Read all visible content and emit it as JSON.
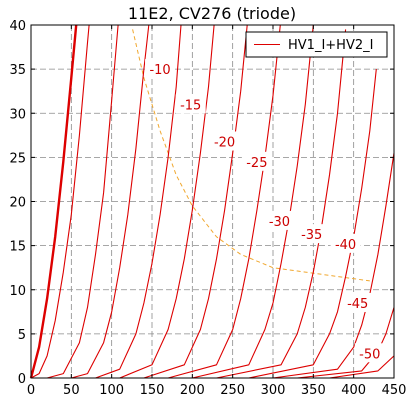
{
  "chart_data": {
    "type": "line",
    "title": "11E2, CV276 (triode)",
    "xlabel": "",
    "ylabel": "",
    "xlim": [
      0,
      450
    ],
    "ylim": [
      0,
      40
    ],
    "x_ticks": [
      0,
      50,
      100,
      150,
      200,
      250,
      300,
      350,
      400,
      450
    ],
    "y_ticks": [
      0,
      5,
      10,
      15,
      20,
      25,
      30,
      35,
      40
    ],
    "grid": true,
    "legend": {
      "placement": "top-right",
      "entries": [
        "HV1_I+HV2_I"
      ]
    },
    "series_color": "#dd0000",
    "guide_color": "#f0a830",
    "series": [
      {
        "name": "HV1_I+HV2_I",
        "emphasis": "bold",
        "x": [
          0,
          10,
          20,
          30,
          40,
          50,
          56
        ],
        "y": [
          0,
          3.5,
          9.0,
          16.0,
          24.5,
          34.0,
          40.0
        ]
      },
      {
        "x": [
          0,
          10,
          20,
          30,
          40,
          50,
          60,
          70,
          72
        ],
        "y": [
          0,
          0.5,
          2.5,
          6.5,
          12.0,
          18.5,
          27.5,
          38.0,
          40.0
        ]
      },
      {
        "x": [
          20,
          40,
          60,
          70,
          80,
          90,
          100,
          108
        ],
        "y": [
          0,
          0.5,
          4.0,
          8.0,
          14.0,
          21.0,
          31.5,
          40.0
        ]
      },
      {
        "x": [
          50,
          70,
          90,
          100,
          110,
          120,
          130,
          140,
          146
        ],
        "y": [
          0,
          0.5,
          4.0,
          7.5,
          12.5,
          18.5,
          26.0,
          35.0,
          40.0
        ]
      },
      {
        "x": [
          80,
          110,
          130,
          140,
          150,
          160,
          170,
          180,
          186
        ],
        "y": [
          0,
          1.0,
          5.0,
          8.5,
          13.0,
          18.5,
          25.0,
          33.0,
          40.0
        ]
      },
      {
        "x": [
          110,
          150,
          170,
          180,
          190,
          200,
          210,
          220,
          227
        ],
        "y": [
          0,
          1.5,
          5.5,
          9.0,
          13.5,
          19.0,
          25.5,
          33.0,
          40.0
        ]
      },
      {
        "x": [
          140,
          190,
          210,
          220,
          230,
          240,
          250,
          260,
          268
        ],
        "y": [
          0,
          1.5,
          5.5,
          9.0,
          13.5,
          19.0,
          25.5,
          32.5,
          40.0
        ]
      },
      {
        "x": [
          170,
          230,
          250,
          260,
          270,
          280,
          290,
          300,
          309
        ],
        "y": [
          0,
          1.5,
          5.5,
          9.0,
          13.5,
          19.0,
          25.0,
          32.0,
          40.0
        ]
      },
      {
        "x": [
          200,
          270,
          290,
          300,
          310,
          320,
          330,
          340,
          350
        ],
        "y": [
          0,
          1.5,
          5.5,
          8.5,
          13.0,
          18.0,
          24.0,
          31.0,
          40.0
        ]
      },
      {
        "x": [
          230,
          310,
          330,
          340,
          350,
          360,
          370,
          380,
          390
        ],
        "y": [
          0,
          1.5,
          5.0,
          8.0,
          12.0,
          17.0,
          23.0,
          30.0,
          39.5
        ]
      },
      {
        "x": [
          270,
          350,
          370,
          380,
          390,
          400,
          410,
          420,
          428
        ],
        "y": [
          0,
          1.5,
          5.0,
          7.5,
          11.5,
          16.0,
          21.5,
          28.0,
          35.0
        ]
      },
      {
        "x": [
          300,
          380,
          400,
          410,
          420,
          430,
          440,
          450
        ],
        "y": [
          0,
          1.0,
          3.5,
          6.0,
          9.5,
          14.0,
          19.5,
          25.5
        ]
      },
      {
        "x": [
          330,
          410,
          430,
          440,
          450
        ],
        "y": [
          0,
          0.8,
          3.0,
          5.0,
          8.0
        ]
      },
      {
        "x": [
          370,
          430,
          450
        ],
        "y": [
          0,
          0.8,
          2.5
        ]
      }
    ],
    "guide_line": {
      "x": [
        126,
        140,
        160,
        180,
        200,
        230,
        260,
        300,
        340,
        380,
        420
      ],
      "y": [
        39.5,
        34.0,
        28.0,
        23.0,
        19.5,
        16.0,
        14.0,
        12.5,
        12.0,
        11.5,
        11.0
      ]
    },
    "curve_labels": [
      {
        "text": "-10",
        "x": 160,
        "y": 35.0
      },
      {
        "text": "-15",
        "x": 198,
        "y": 31.0
      },
      {
        "text": "-20",
        "x": 240,
        "y": 26.8
      },
      {
        "text": "-25",
        "x": 280,
        "y": 24.5
      },
      {
        "text": "-30",
        "x": 308,
        "y": 17.8
      },
      {
        "text": "-35",
        "x": 348,
        "y": 16.3
      },
      {
        "text": "-40",
        "x": 390,
        "y": 15.2
      },
      {
        "text": "-45",
        "x": 405,
        "y": 8.5
      },
      {
        "text": "-50",
        "x": 420,
        "y": 2.8
      }
    ]
  }
}
